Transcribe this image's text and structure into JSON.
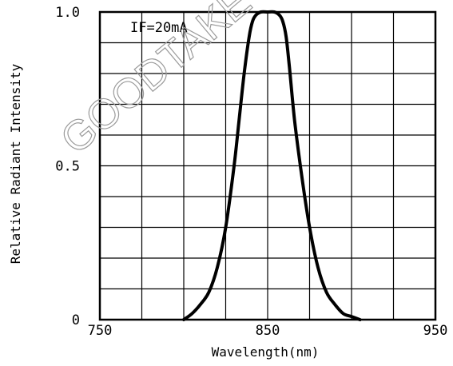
{
  "chart_data": {
    "type": "line",
    "title": "",
    "annotation": "IF=20mA",
    "xlabel": "Wavelength(nm)",
    "ylabel": "Relative Radiant Intensity",
    "xlim": [
      750,
      950
    ],
    "ylim": [
      0,
      1.0
    ],
    "x_ticks": [
      750,
      850,
      950
    ],
    "x_tick_labels": [
      "750",
      "850",
      "950"
    ],
    "y_ticks": [
      0,
      0.5,
      1.0
    ],
    "y_tick_labels": [
      "0",
      "0.5",
      "1.0"
    ],
    "grid": true,
    "grid_divisions": {
      "x": 8,
      "y": 10
    },
    "line_color": "#000000",
    "series": [
      {
        "x": [
          800,
          805,
          810,
          815,
          820,
          825,
          830,
          833,
          836,
          839,
          841,
          843,
          846,
          850,
          854,
          857,
          859,
          861,
          863,
          866,
          870,
          875,
          880,
          885,
          890,
          895,
          900,
          905
        ],
        "y": [
          0.0,
          0.02,
          0.05,
          0.09,
          0.17,
          0.3,
          0.5,
          0.65,
          0.8,
          0.92,
          0.97,
          0.99,
          1.0,
          1.0,
          1.0,
          0.99,
          0.97,
          0.92,
          0.82,
          0.65,
          0.48,
          0.3,
          0.17,
          0.09,
          0.05,
          0.02,
          0.01,
          0.0
        ]
      }
    ]
  },
  "watermark": "GOODTAKE"
}
